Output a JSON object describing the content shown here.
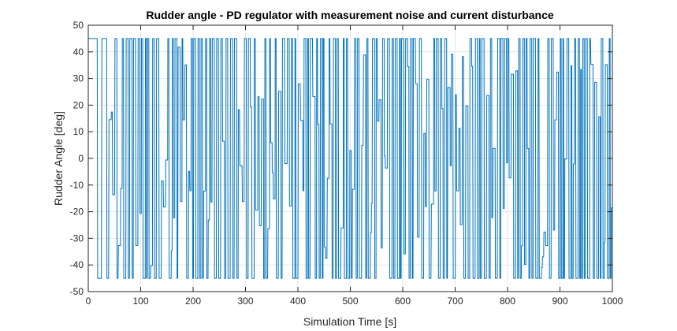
{
  "chart_data": {
    "type": "line",
    "title": "Rudder angle - PD regulator with measurement noise and current disturbance",
    "xlabel": "Simulation Time [s]",
    "ylabel": "Rudder Angle [deg]",
    "xlim": [
      0,
      1000
    ],
    "ylim": [
      -50,
      50
    ],
    "x_ticks": [
      0,
      100,
      200,
      300,
      400,
      500,
      600,
      700,
      800,
      900,
      1000
    ],
    "y_ticks": [
      -50,
      -40,
      -30,
      -20,
      -10,
      0,
      10,
      20,
      30,
      40,
      50
    ],
    "grid": true,
    "legend": false,
    "line_color": "#0072BD",
    "series": [
      {
        "x": [
          0,
          10,
          17,
          18,
          22,
          25,
          26,
          35,
          50,
          100,
          200,
          300,
          400,
          500,
          600,
          700,
          800,
          900,
          1000
        ],
        "y": [
          45,
          45,
          45,
          -45,
          -45,
          -45,
          45,
          45,
          45,
          45,
          -45,
          45,
          -45,
          45,
          -45,
          45,
          -45,
          45,
          -45
        ],
        "note_pattern": "saturated oscillation between -45 and 45 after t=25"
      }
    ]
  }
}
